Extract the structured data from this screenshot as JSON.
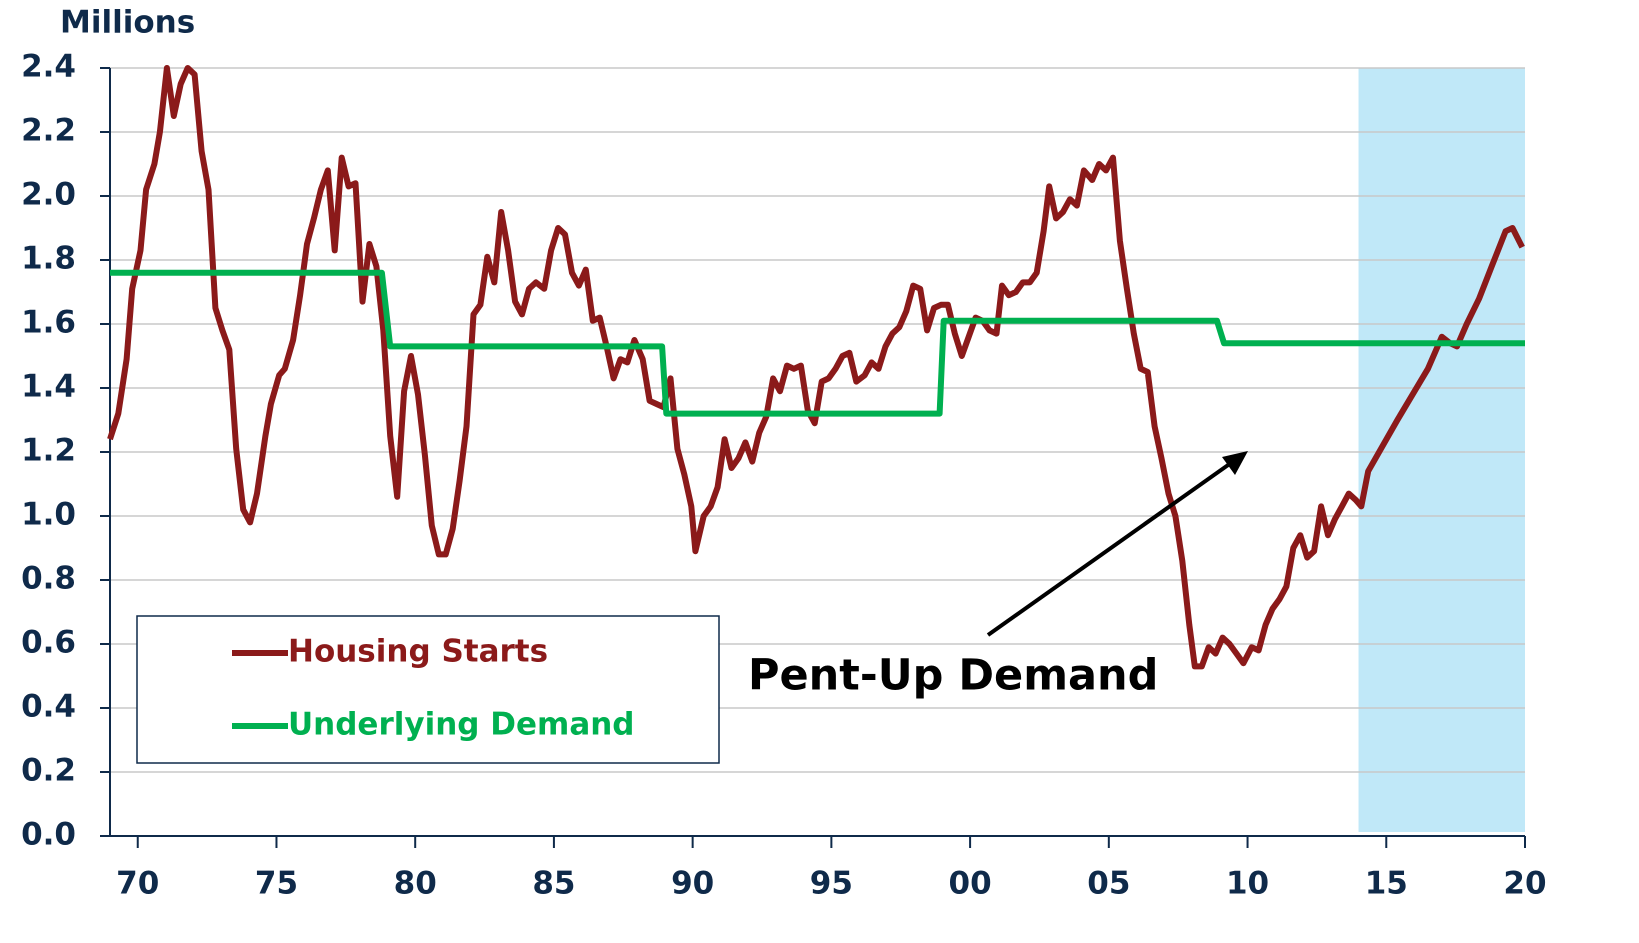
{
  "chart_data": {
    "type": "line",
    "y_axis_label": "Millions",
    "annotation": "Pent-Up Demand",
    "xlim": [
      1969,
      2020
    ],
    "ylim": [
      0,
      2.4
    ],
    "xticks": [
      {
        "value": 1970,
        "label": "70"
      },
      {
        "value": 1975,
        "label": "75"
      },
      {
        "value": 1980,
        "label": "80"
      },
      {
        "value": 1985,
        "label": "85"
      },
      {
        "value": 1990,
        "label": "90"
      },
      {
        "value": 1995,
        "label": "95"
      },
      {
        "value": 2000,
        "label": "00"
      },
      {
        "value": 2005,
        "label": "05"
      },
      {
        "value": 2010,
        "label": "10"
      },
      {
        "value": 2015,
        "label": "15"
      },
      {
        "value": 2020,
        "label": "20"
      }
    ],
    "yticks": [
      {
        "value": 0,
        "label": "0.0"
      },
      0.2,
      0.4,
      0.6,
      0.8,
      {
        "value": 1,
        "label": "1.0"
      },
      1.2,
      1.4,
      1.6,
      1.8,
      {
        "value": 2,
        "label": "2.0"
      },
      2.2,
      2.4
    ],
    "grid": true,
    "highlight_xlim": [
      2014,
      2020
    ],
    "highlight_color": "#c0e8f8",
    "legend_position": "lower left",
    "series": [
      {
        "name": "Housing Starts",
        "color": "#8b1a1a",
        "x": [
          1969.0,
          1969.3,
          1969.6,
          1969.8,
          1970.1,
          1970.3,
          1970.6,
          1970.8,
          1971.05,
          1971.3,
          1971.55,
          1971.8,
          1972.05,
          1972.3,
          1972.55,
          1972.8,
          1973.05,
          1973.3,
          1973.55,
          1973.8,
          1974.05,
          1974.3,
          1974.6,
          1974.8,
          1975.1,
          1975.3,
          1975.6,
          1975.85,
          1976.1,
          1976.35,
          1976.6,
          1976.85,
          1977.1,
          1977.35,
          1977.6,
          1977.85,
          1978.1,
          1978.35,
          1978.6,
          1978.85,
          1979.1,
          1979.35,
          1979.6,
          1979.85,
          1980.1,
          1980.35,
          1980.6,
          1980.85,
          1981.1,
          1981.35,
          1981.6,
          1981.85,
          1982.1,
          1982.35,
          1982.6,
          1982.85,
          1983.1,
          1983.35,
          1983.6,
          1983.85,
          1984.1,
          1984.35,
          1984.65,
          1984.9,
          1985.15,
          1985.4,
          1985.65,
          1985.9,
          1986.15,
          1986.4,
          1986.65,
          1986.9,
          1987.15,
          1987.4,
          1987.65,
          1987.9,
          1988.2,
          1988.45,
          1988.7,
          1988.95,
          1989.2,
          1989.45,
          1989.7,
          1989.95,
          1990.1,
          1990.4,
          1990.65,
          1990.9,
          1991.15,
          1991.4,
          1991.65,
          1991.9,
          1992.15,
          1992.4,
          1992.65,
          1992.9,
          1993.15,
          1993.4,
          1993.65,
          1993.9,
          1994.15,
          1994.4,
          1994.65,
          1994.9,
          1995.15,
          1995.4,
          1995.65,
          1995.9,
          1996.2,
          1996.45,
          1996.7,
          1996.95,
          1997.2,
          1997.45,
          1997.7,
          1997.95,
          1998.2,
          1998.45,
          1998.7,
          1998.95,
          1999.2,
          1999.45,
          1999.7,
          1999.95,
          2000.2,
          2000.45,
          2000.7,
          2000.95,
          2001.15,
          2001.4,
          2001.65,
          2001.9,
          2002.15,
          2002.4,
          2002.65,
          2002.85,
          2003.1,
          2003.35,
          2003.6,
          2003.85,
          2004.1,
          2004.4,
          2004.65,
          2004.9,
          2005.15,
          2005.4,
          2005.65,
          2005.9,
          2006.15,
          2006.4,
          2006.65,
          2006.9,
          2007.15,
          2007.4,
          2007.65,
          2007.9,
          2008.1,
          2008.35,
          2008.6,
          2008.85,
          2009.1,
          2009.35,
          2009.6,
          2009.85,
          2010.15,
          2010.4,
          2010.65,
          2010.9,
          2011.15,
          2011.4,
          2011.65,
          2011.9,
          2012.15,
          2012.4,
          2012.65,
          2012.9,
          2013.15,
          2013.4,
          2013.65,
          2013.9,
          2014.1,
          2014.35,
          2015.4,
          2016.5,
          2017.0,
          2017.3,
          2017.55,
          2017.9,
          2018.35,
          2018.8,
          2019.3,
          2019.55,
          2019.9
        ],
        "values": [
          1.24,
          1.32,
          1.49,
          1.71,
          1.83,
          2.02,
          2.1,
          2.2,
          2.4,
          2.25,
          2.35,
          2.4,
          2.38,
          2.14,
          2.02,
          1.65,
          1.58,
          1.52,
          1.21,
          1.02,
          0.98,
          1.07,
          1.25,
          1.35,
          1.44,
          1.46,
          1.55,
          1.69,
          1.85,
          1.93,
          2.02,
          2.08,
          1.83,
          2.12,
          2.03,
          2.04,
          1.67,
          1.85,
          1.78,
          1.58,
          1.25,
          1.06,
          1.39,
          1.5,
          1.38,
          1.19,
          0.97,
          0.88,
          0.88,
          0.96,
          1.11,
          1.28,
          1.63,
          1.66,
          1.81,
          1.73,
          1.95,
          1.83,
          1.67,
          1.63,
          1.71,
          1.73,
          1.71,
          1.83,
          1.9,
          1.88,
          1.76,
          1.72,
          1.77,
          1.61,
          1.62,
          1.53,
          1.43,
          1.49,
          1.48,
          1.55,
          1.49,
          1.36,
          1.35,
          1.34,
          1.43,
          1.21,
          1.13,
          1.03,
          0.89,
          1.0,
          1.03,
          1.09,
          1.24,
          1.15,
          1.18,
          1.23,
          1.17,
          1.26,
          1.31,
          1.43,
          1.39,
          1.47,
          1.46,
          1.47,
          1.33,
          1.29,
          1.42,
          1.43,
          1.46,
          1.5,
          1.51,
          1.42,
          1.44,
          1.48,
          1.46,
          1.53,
          1.57,
          1.59,
          1.64,
          1.72,
          1.71,
          1.58,
          1.65,
          1.66,
          1.66,
          1.57,
          1.5,
          1.56,
          1.62,
          1.61,
          1.58,
          1.57,
          1.72,
          1.69,
          1.7,
          1.73,
          1.73,
          1.76,
          1.89,
          2.03,
          1.93,
          1.95,
          1.99,
          1.97,
          2.08,
          2.05,
          2.1,
          2.08,
          2.12,
          1.86,
          1.71,
          1.57,
          1.46,
          1.45,
          1.28,
          1.18,
          1.07,
          1.0,
          0.86,
          0.66,
          0.53,
          0.53,
          0.59,
          0.57,
          0.62,
          0.6,
          0.57,
          0.54,
          0.59,
          0.58,
          0.66,
          0.71,
          0.74,
          0.78,
          0.9,
          0.94,
          0.87,
          0.89,
          1.03,
          0.94,
          0.99,
          1.03,
          1.07,
          1.05,
          1.03,
          1.14,
          1.3,
          1.46,
          1.56,
          1.54,
          1.53,
          1.6,
          1.68,
          1.78,
          1.89,
          1.9,
          1.84
        ]
      },
      {
        "name": "Underlying Demand",
        "color": "#00b050",
        "x": [
          1969,
          1978.8,
          1979.1,
          1988.9,
          1989.05,
          1998.9,
          1999.05,
          2008.9,
          2009.15,
          2020
        ],
        "values": [
          1.76,
          1.76,
          1.53,
          1.53,
          1.32,
          1.32,
          1.61,
          1.61,
          1.54,
          1.54
        ]
      }
    ]
  }
}
